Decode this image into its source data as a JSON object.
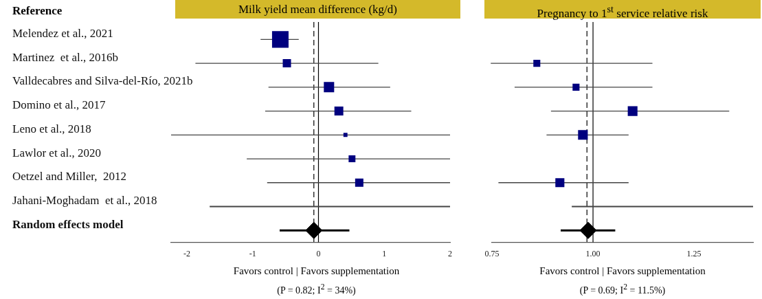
{
  "chart_data": [
    {
      "type": "scatter",
      "orientation": "horizontal",
      "title": "Milk yield mean difference (kg/d)",
      "ylabel": "Reference",
      "xlabel": "Favors control | Favors supplementation",
      "annotations": [
        "(P = 0.82; I$^{2}$ = 34%)"
      ],
      "categories": [
        "Melendez et al., 2021",
        "Martinez  et al., 2016b",
        "Valldecabres and Silva-del-Río, 2021b",
        "Domino et al., 2017",
        "Leno et al., 2018",
        "Lawlor et al., 2020",
        "Oetzel and Miller,  2012",
        "Jahani-Moghadam  et al., 2018",
        "Random effects model"
      ],
      "series": [
        {
          "type": "bubble",
          "marker": "square",
          "color": "#00007f",
          "values": [
            -0.58,
            -0.48,
            0.16,
            0.31,
            0.41,
            0.51,
            0.62,
            null,
            null
          ],
          "sizes": [
            1,
            0.25,
            0.39,
            0.29,
            0.06,
            0.17,
            0.25,
            null,
            null
          ],
          "errors": [
            [
              -0.88,
              -0.3
            ],
            [
              -1.87,
              0.91
            ],
            [
              -0.76,
              1.09
            ],
            [
              -0.81,
              1.41
            ],
            [
              -2.24,
              2
            ],
            [
              -1.09,
              2
            ],
            [
              -0.78,
              2
            ],
            null,
            null
          ]
        },
        {
          "type": "bar",
          "color": "#444444",
          "values": [
            null,
            null,
            null,
            null,
            null,
            null,
            null,
            3.65,
            null
          ],
          "base": [
            null,
            null,
            null,
            null,
            null,
            null,
            null,
            -1.65,
            null
          ]
        },
        {
          "type": "scatter",
          "marker": "diamond",
          "color": "#000000",
          "values": [
            null,
            null,
            null,
            null,
            null,
            null,
            null,
            null,
            -0.07
          ],
          "errors": [
            null,
            null,
            null,
            null,
            null,
            null,
            null,
            null,
            [
              -0.59,
              0.47
            ]
          ]
        }
      ],
      "xlim": [
        -2.24,
        2
      ],
      "xticks": [
        -2,
        -1,
        0,
        1,
        2
      ],
      "ref_lines": [
        {
          "axis": "x",
          "value": 0,
          "line_style": "solid",
          "color": "#000000"
        },
        {
          "axis": "x",
          "value": -0.07,
          "line_style": "dashed",
          "color": "#000000"
        }
      ],
      "grid": false,
      "legend": false
    },
    {
      "type": "scatter",
      "orientation": "horizontal",
      "title": "Pregnancy to 1$^{st}$ service relative risk",
      "xlabel": "Favors control | Favors supplementation",
      "annotations": [
        "(P = 0.69; I$^{2}$ = 11.5%)"
      ],
      "series": [
        {
          "type": "bubble",
          "marker": "square",
          "color": "#00007f",
          "values": [
            null,
            0.861,
            0.958,
            1.098,
            0.975,
            null,
            0.918,
            null,
            null
          ],
          "sizes": [
            null,
            0.51,
            0.51,
            1,
            1,
            null,
            0.86,
            null,
            null
          ],
          "errors": [
            null,
            [
              0.747,
              1.147
            ],
            [
              0.806,
              1.147
            ],
            [
              0.896,
              1.337
            ],
            [
              0.885,
              1.088
            ],
            null,
            [
              0.766,
              1.088
            ],
            null,
            null
          ]
        },
        {
          "type": "bar",
          "color": "#444444",
          "values": [
            null,
            null,
            null,
            null,
            null,
            null,
            null,
            0.448,
            null
          ],
          "base": [
            null,
            null,
            null,
            null,
            null,
            null,
            null,
            0.948,
            null
          ]
        },
        {
          "type": "scatter",
          "marker": "diamond",
          "color": "#000000",
          "values": [
            null,
            null,
            null,
            null,
            null,
            null,
            null,
            null,
            0.988
          ],
          "errors": [
            null,
            null,
            null,
            null,
            null,
            null,
            null,
            null,
            [
              0.92,
              1.055
            ]
          ]
        }
      ],
      "xlim": [
        0.75,
        1.396
      ],
      "xticks": [
        {
          "value": 0.75,
          "label": "0.75"
        },
        {
          "value": 1,
          "label": "1.00"
        },
        {
          "value": 1.25,
          "label": "1.25"
        }
      ],
      "ref_lines": [
        {
          "axis": "x",
          "value": 1,
          "line_style": "solid",
          "color": "#000000"
        },
        {
          "axis": "x",
          "value": 0.985,
          "line_style": "dashed",
          "color": "#000000"
        }
      ],
      "grid": false,
      "legend": false,
      "tick_labels": "x"
    }
  ]
}
